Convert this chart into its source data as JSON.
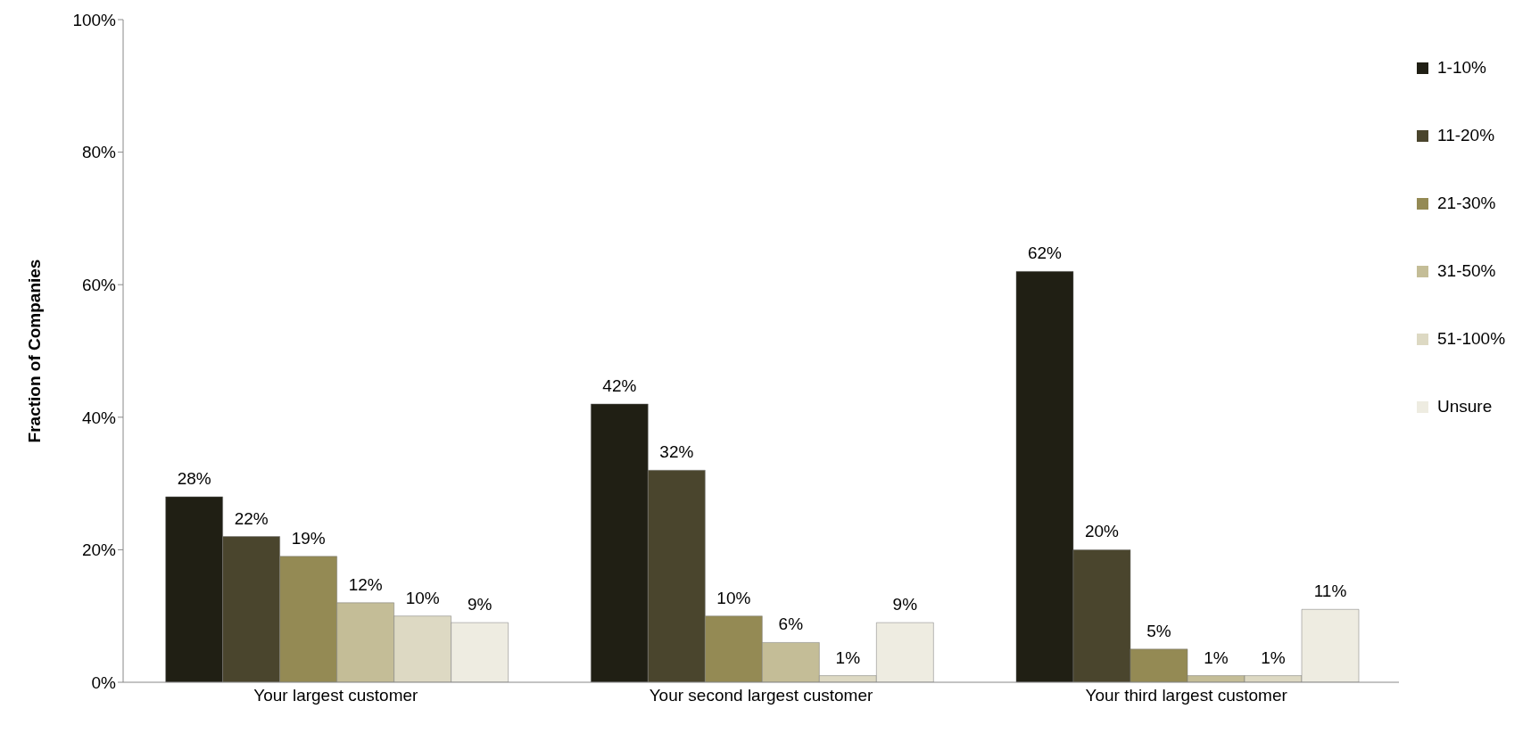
{
  "chart_data": {
    "type": "bar",
    "ylabel": "Fraction of Companies",
    "categories": [
      "Your largest customer",
      "Your second largest customer",
      "Your third largest customer"
    ],
    "series": [
      {
        "name": "1-10%",
        "color": "#201f14",
        "values": [
          28,
          42,
          62
        ],
        "value_labels": [
          "28%",
          "42%",
          "62%"
        ]
      },
      {
        "name": "11-20%",
        "color": "#4a452d",
        "values": [
          22,
          32,
          20
        ],
        "value_labels": [
          "22%",
          "32%",
          "20%"
        ]
      },
      {
        "name": "21-30%",
        "color": "#948a54",
        "values": [
          19,
          10,
          5
        ],
        "value_labels": [
          "19%",
          "10%",
          "5%"
        ]
      },
      {
        "name": "31-50%",
        "color": "#c4bd97",
        "values": [
          12,
          6,
          1
        ],
        "value_labels": [
          "12%",
          "6%",
          "1%"
        ]
      },
      {
        "name": "51-100%",
        "color": "#ddd9c3",
        "values": [
          10,
          1,
          1
        ],
        "value_labels": [
          "10%",
          "1%",
          "1%"
        ]
      },
      {
        "name": "Unsure",
        "color": "#eeece1",
        "values": [
          9,
          9,
          11
        ],
        "value_labels": [
          "9%",
          "9%",
          "11%"
        ]
      }
    ],
    "ylim": [
      0,
      100
    ],
    "yticks": [
      {
        "value": 0,
        "label": "0%"
      },
      {
        "value": 20,
        "label": "20%"
      },
      {
        "value": 40,
        "label": "40%"
      },
      {
        "value": 60,
        "label": "60%"
      },
      {
        "value": 80,
        "label": "80%"
      },
      {
        "value": 100,
        "label": "100%"
      }
    ],
    "grid": false,
    "legend": "right"
  }
}
